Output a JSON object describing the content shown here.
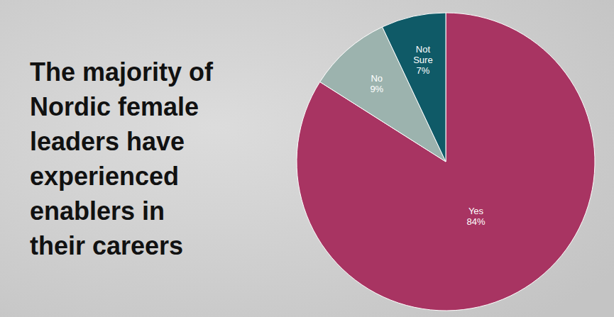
{
  "chart_data": {
    "type": "pie",
    "title": "The majority of Nordic female leaders have experienced enablers in their careers",
    "categories": [
      "Yes",
      "No",
      "Not Sure"
    ],
    "values": [
      84,
      9,
      7
    ],
    "value_labels": [
      "84%",
      "9%",
      "7%"
    ],
    "colors": [
      "#a83462",
      "#9cb3ae",
      "#0f5a67"
    ],
    "data_labels": true
  }
}
